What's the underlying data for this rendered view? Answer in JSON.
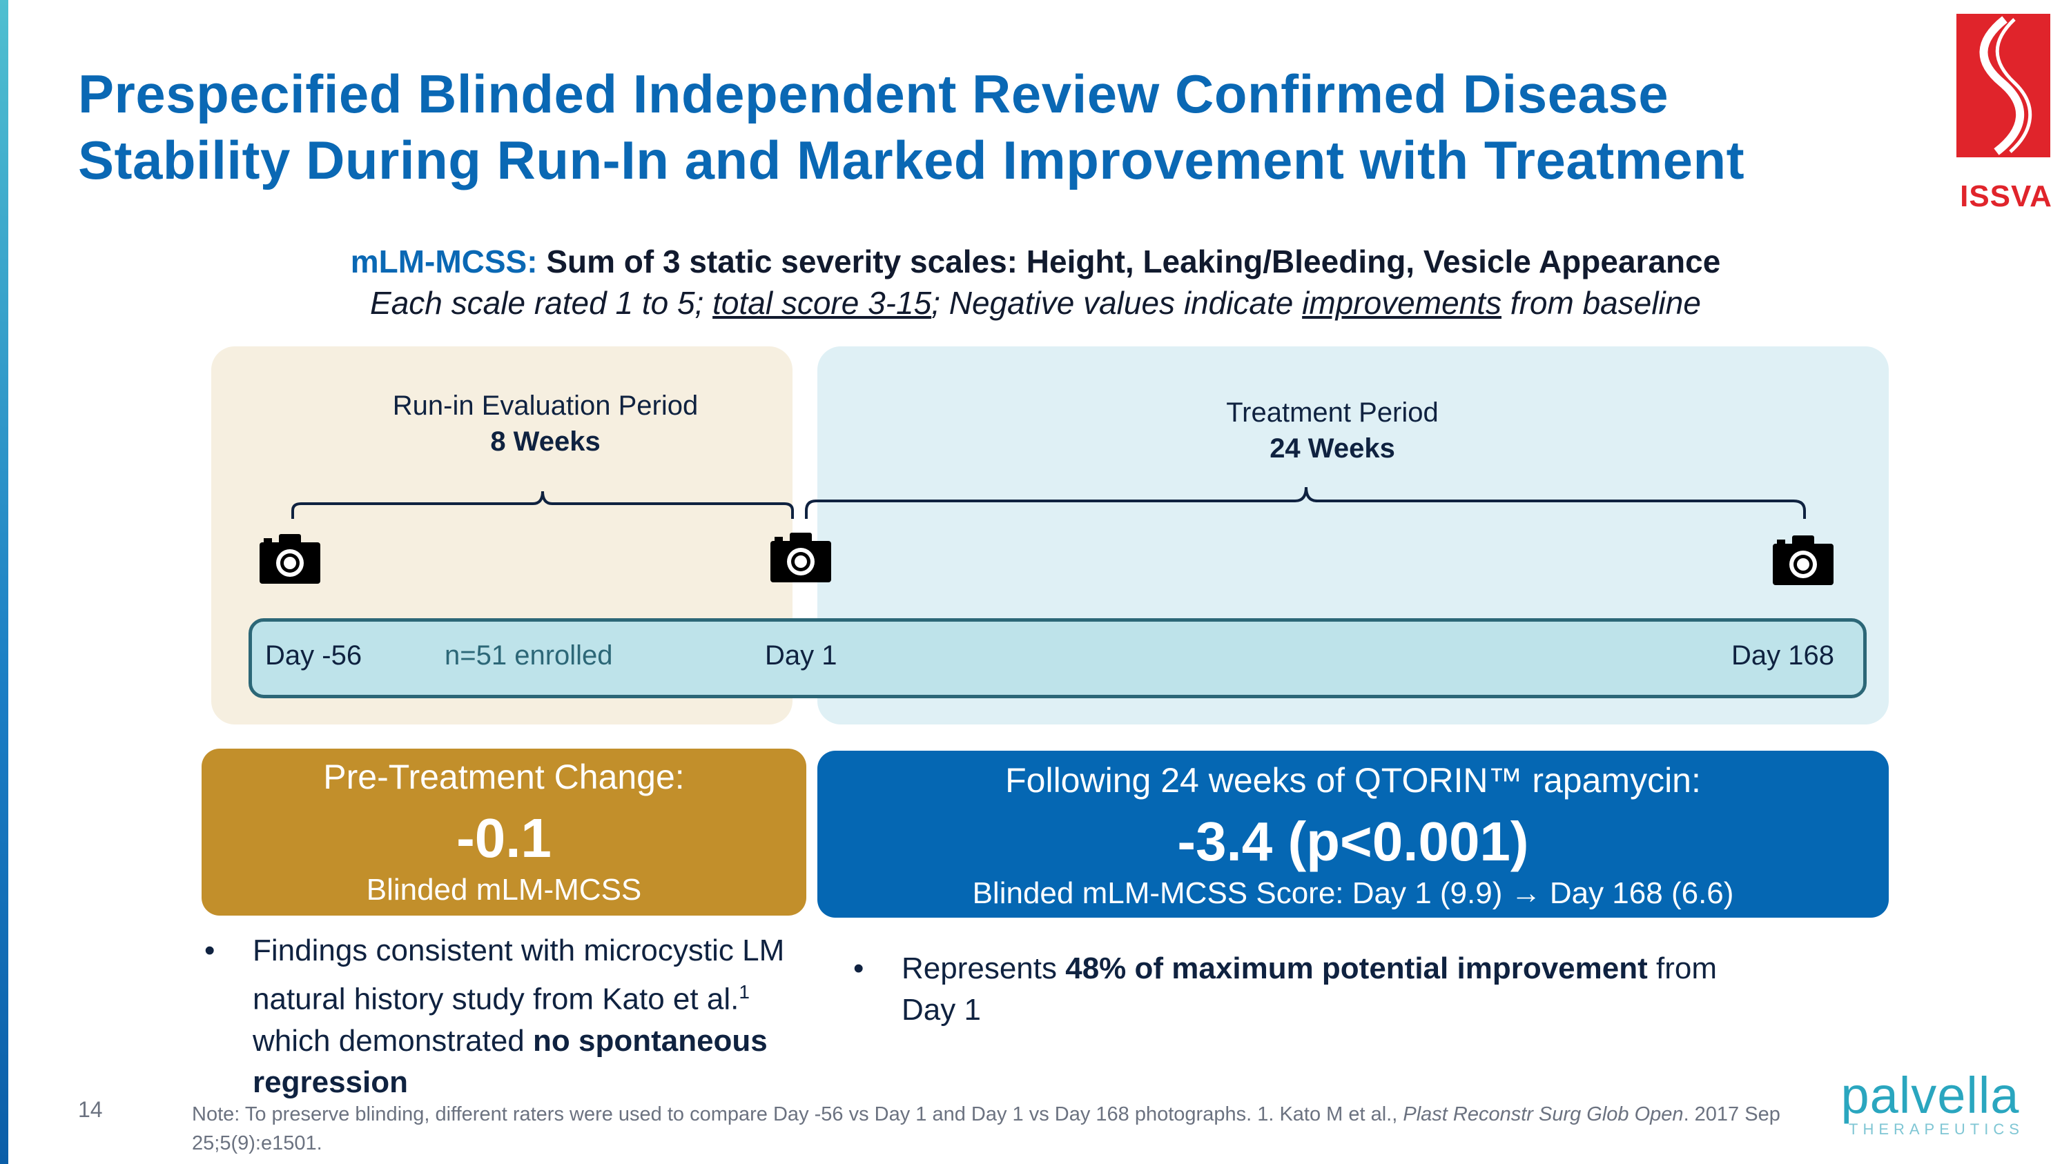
{
  "slide": {
    "title_line1": "Prespecified Blinded Independent Review Confirmed Disease",
    "title_line2": "Stability During Run-In and Marked Improvement with Treatment",
    "page_number": "14"
  },
  "logos": {
    "issva": "ISSVA",
    "palvella": "palvella",
    "palvella_sub": "THERAPEUTICS"
  },
  "subtitle": {
    "accent": "mLM-MCSS:",
    "line1_rest": " Sum of 3 static severity scales: Height, Leaking/Bleeding, Vesicle Appearance",
    "line2_a": "Each scale rated 1 to 5; ",
    "line2_b": "total score 3-15",
    "line2_c": "; Negative values indicate ",
    "line2_d": "improvements",
    "line2_e": " from baseline"
  },
  "periods": {
    "runin_label": "Run-in Evaluation Period",
    "runin_weeks": "8 Weeks",
    "treatment_label": "Treatment Period",
    "treatment_weeks": "24 Weeks"
  },
  "timeline": {
    "day_start": "Day -56",
    "enrolled": "n=51 enrolled",
    "day_mid": "Day 1",
    "day_end": "Day 168"
  },
  "results": {
    "pre_heading": "Pre-Treatment Change:",
    "pre_value": "-0.1",
    "pre_caption": "Blinded mLM-MCSS",
    "post_heading": "Following 24 weeks of QTORIN™ rapamycin:",
    "post_value": "-3.4 (p<0.001)",
    "post_caption": "Blinded mLM-MCSS Score: Day 1 (9.9) → Day 168 (6.6)"
  },
  "bullets": {
    "b1_a": "Findings consistent with microcystic LM natural history study from Kato et al.",
    "b1_sup": "1",
    "b1_b": " which demonstrated ",
    "b1_bold": "no spontaneous regression",
    "b2_a": "Represents ",
    "b2_bold": "48% of maximum potential improvement",
    "b2_b": " from Day 1"
  },
  "footnote": {
    "text": "Note: To preserve blinding, different raters were used to compare Day -56 vs Day 1 and Day 1 vs Day 168 photographs. 1. Kato M et al., ",
    "journal": "Plast Reconstr Surg Glob Open",
    "citation": ". 2017 Sep 25;5(9):e1501."
  },
  "icons": {
    "camera": "camera-icon",
    "bullet": "bullet-dot-icon"
  },
  "colors": {
    "title_blue": "#0a68b4",
    "gold": "#c28f2b",
    "deep_blue": "#0567b3",
    "runin_bg": "#f6efe0",
    "treatment_bg": "#dff0f5",
    "timeline_fill": "#bee3ea",
    "issva_red": "#e0242b"
  }
}
